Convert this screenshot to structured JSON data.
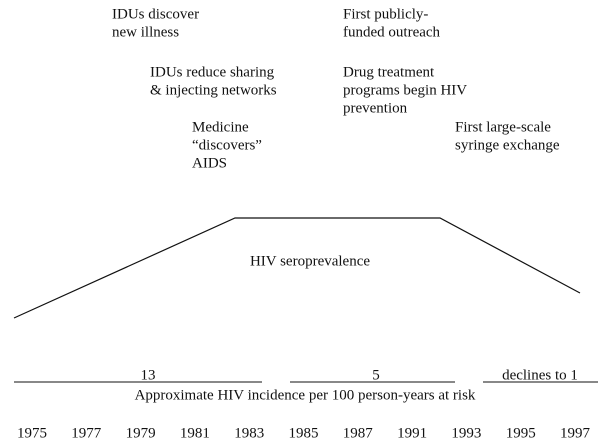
{
  "annotations": [
    {
      "lines": [
        "IDUs discover",
        "new illness"
      ]
    },
    {
      "lines": [
        "IDUs reduce sharing",
        "& injecting networks"
      ]
    },
    {
      "lines": [
        "Medicine",
        "“discovers”",
        "AIDS"
      ]
    },
    {
      "lines": [
        "First publicly-",
        "funded outreach"
      ]
    },
    {
      "lines": [
        "Drug treatment",
        "programs begin HIV",
        "prevention"
      ]
    },
    {
      "lines": [
        "First large-scale",
        "syringe exchange"
      ]
    }
  ],
  "curve_label": "HIV seroprevalence",
  "incidence": {
    "periods": [
      "13",
      "5",
      "declines to 1"
    ],
    "label": "Approximate HIV incidence per 100 person-years at risk"
  },
  "years": [
    "1975",
    "1977",
    "1979",
    "1981",
    "1983",
    "1985",
    "1987",
    "1991",
    "1993",
    "1995",
    "1997"
  ]
}
